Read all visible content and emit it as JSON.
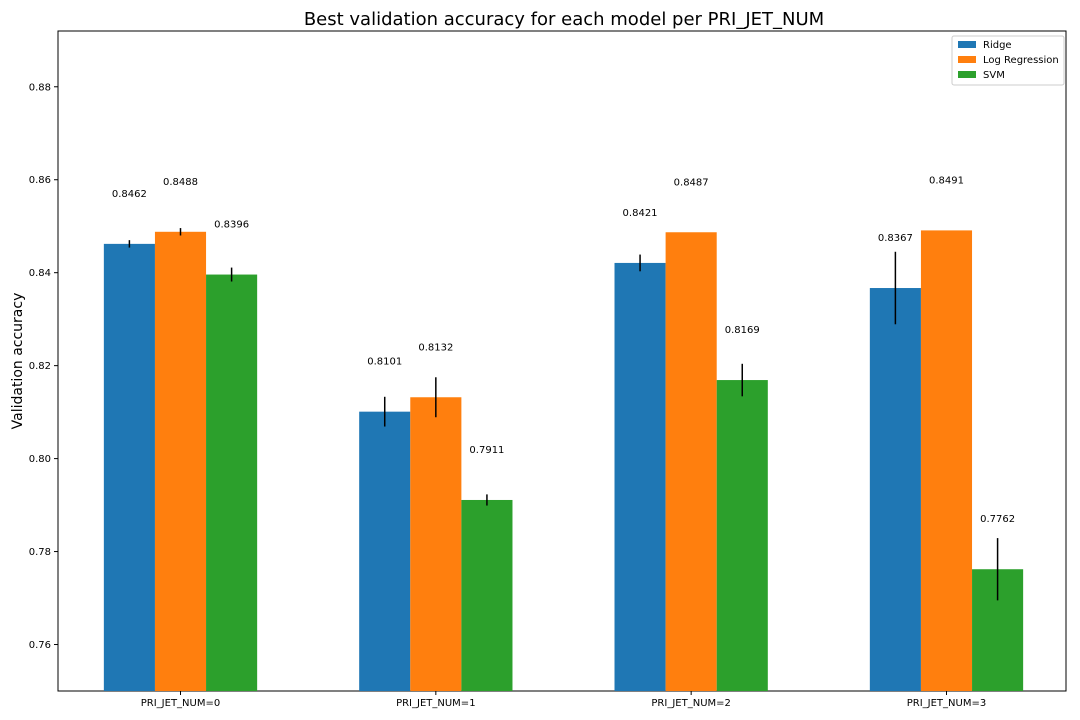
{
  "chart_data": {
    "type": "bar",
    "title": "Best validation accuracy for each model per PRI_JET_NUM",
    "xlabel": "",
    "ylabel": "Validation accuracy",
    "ylim": [
      0.75,
      0.892
    ],
    "yticks": [
      0.76,
      0.78,
      0.8,
      0.82,
      0.84,
      0.86,
      0.88
    ],
    "ytick_labels": [
      "0.76",
      "0.78",
      "0.80",
      "0.82",
      "0.84",
      "0.86",
      "0.88"
    ],
    "categories": [
      "PRI_JET_NUM=0",
      "PRI_JET_NUM=1",
      "PRI_JET_NUM=2",
      "PRI_JET_NUM=3"
    ],
    "series": [
      {
        "name": "Ridge",
        "color": "#1f77b4",
        "values": [
          0.8462,
          0.8101,
          0.8421,
          0.8367
        ],
        "labels": [
          "0.8462",
          "0.8101",
          "0.8421",
          "0.8367"
        ],
        "errors": [
          0.0008,
          0.0032,
          0.0018,
          0.0078
        ]
      },
      {
        "name": "Log Regression",
        "color": "#ff7f0e",
        "values": [
          0.8488,
          0.8132,
          0.8487,
          0.8491
        ],
        "labels": [
          "0.8488",
          "0.8132",
          "0.8487",
          "0.8491"
        ],
        "errors": [
          0.0008,
          0.0043,
          0.0,
          0.0
        ]
      },
      {
        "name": "SVM",
        "color": "#2ca02c",
        "values": [
          0.8396,
          0.7911,
          0.8169,
          0.7762
        ],
        "labels": [
          "0.8396",
          "0.7911",
          "0.8169",
          "0.7762"
        ],
        "errors": [
          0.0015,
          0.0012,
          0.0035,
          0.0067
        ]
      }
    ],
    "legend_position": "top-right",
    "grid": false
  }
}
